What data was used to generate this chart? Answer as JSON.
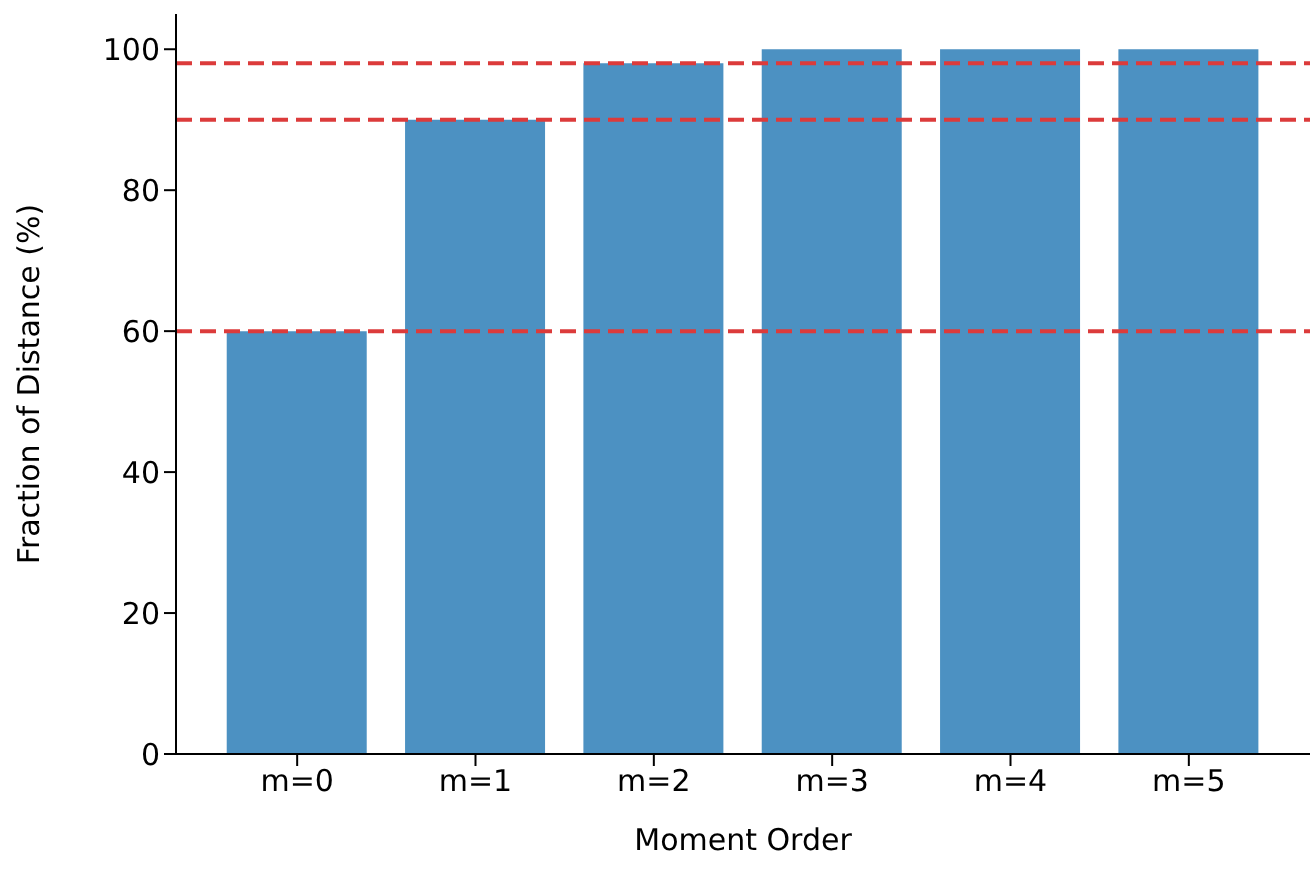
{
  "chart_data": {
    "type": "bar",
    "xlabel": "Moment Order",
    "ylabel": "Fraction of Distance (%)",
    "categories": [
      "m=0",
      "m=1",
      "m=2",
      "m=3",
      "m=4",
      "m=5"
    ],
    "values": [
      60,
      90,
      98,
      100,
      100,
      100
    ],
    "color": "#4c91c2",
    "ylim": [
      0,
      105
    ],
    "yticks": [
      0,
      20,
      40,
      60,
      80,
      100
    ],
    "grid": false,
    "legend": false,
    "ref_lines": [
      {
        "axis": "y",
        "value": 60,
        "color": "#dc3b3b",
        "line_style": "dashed"
      },
      {
        "axis": "y",
        "value": 90,
        "color": "#dc3b3b",
        "line_style": "dashed"
      },
      {
        "axis": "y",
        "value": 98,
        "color": "#dc3b3b",
        "line_style": "dashed"
      }
    ]
  }
}
